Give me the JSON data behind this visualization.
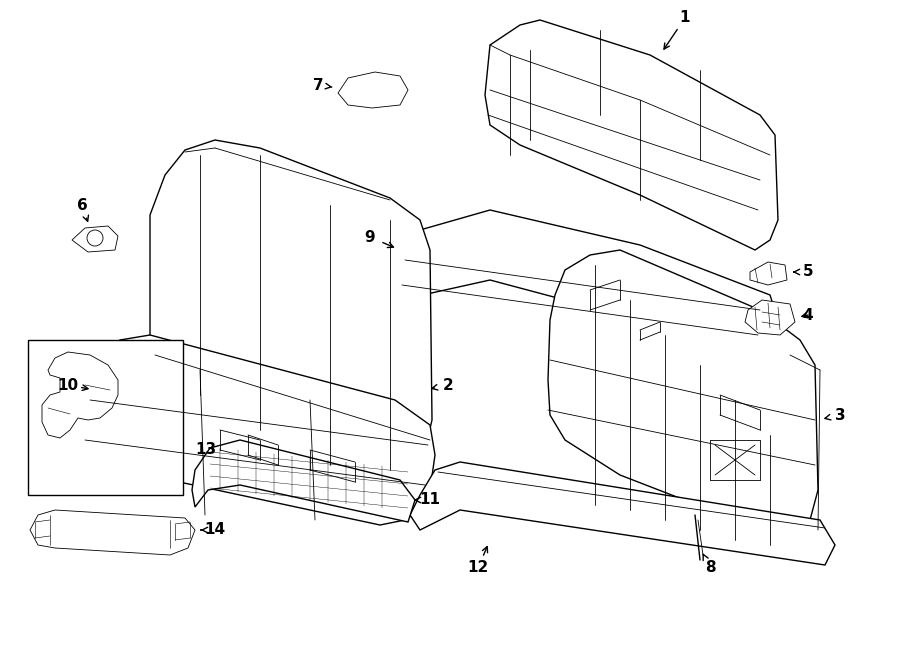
{
  "background_color": "#ffffff",
  "line_color": "#000000",
  "figsize": [
    9.0,
    6.61
  ],
  "dpi": 100,
  "lw_main": 1.0,
  "lw_thin": 0.6,
  "label_fontsize": 11
}
